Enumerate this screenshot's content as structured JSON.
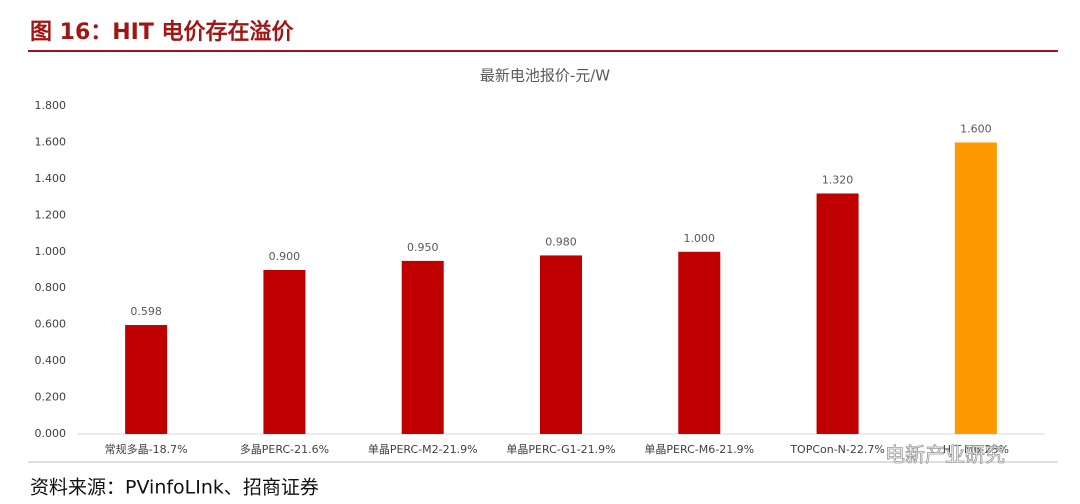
{
  "header": {
    "title": "图 16：HIT 电价存在溢价"
  },
  "chart_data": {
    "type": "bar",
    "title": "最新电池报价-元/W",
    "categories": [
      "常规多晶-18.7%",
      "多晶PERC-21.6%",
      "单晶PERC-M2-21.9%",
      "单晶PERC-G1-21.9%",
      "单晶PERC-M6-21.9%",
      "TOPCon-N-22.7%",
      "HJT-M6-23%"
    ],
    "values": [
      0.598,
      0.9,
      0.95,
      0.98,
      1.0,
      1.32,
      1.6
    ],
    "value_labels": [
      "0.598",
      "0.900",
      "0.950",
      "0.980",
      "1.000",
      "1.320",
      "1.600"
    ],
    "colors": [
      "#c00000",
      "#c00000",
      "#c00000",
      "#c00000",
      "#c00000",
      "#c00000",
      "#ff9900"
    ],
    "ylim": [
      0,
      1.8
    ],
    "yticks": [
      {
        "value": 0,
        "label": "0.000"
      },
      {
        "value": 0.2,
        "label": "0.200"
      },
      {
        "value": 0.4,
        "label": "0.400"
      },
      {
        "value": 0.6,
        "label": "0.600"
      },
      {
        "value": 0.8,
        "label": "0.800"
      },
      {
        "value": 1.0,
        "label": "1.000"
      },
      {
        "value": 1.2,
        "label": "1.200"
      },
      {
        "value": 1.4,
        "label": "1.400"
      },
      {
        "value": 1.6,
        "label": "1.600"
      },
      {
        "value": 1.8,
        "label": "1.800"
      }
    ],
    "grid": false
  },
  "watermark": "电新产业研究",
  "source": "资料来源：PVinfoLInk、招商证券"
}
